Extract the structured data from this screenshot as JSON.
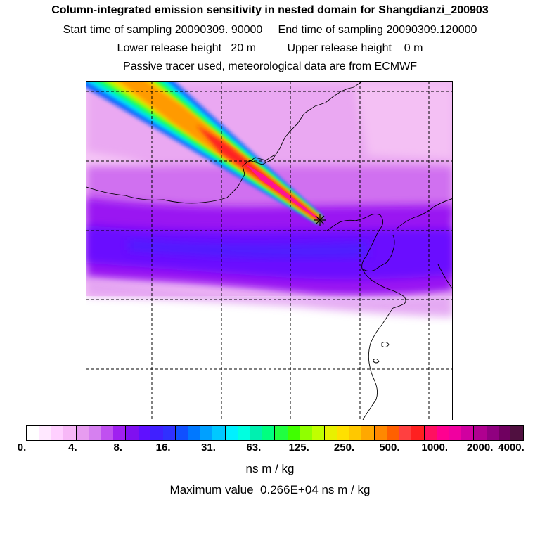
{
  "titles": {
    "line1": "Column-integrated emission sensitivity in nested domain for Shangdianzi_200903",
    "line2": "Start time of sampling 20090309. 90000     End time of sampling 20090309.120000",
    "line3": "Lower release height   20 m          Upper release height    0 m",
    "line4": "Passive tracer used, meteorological data are from ECMWF"
  },
  "map": {
    "release_site_marker": "star-cross-icon",
    "plume_colors": {
      "core": "#ff1493",
      "inner": "#ff2020",
      "mid": "#ff9a00",
      "outer": "#ffd400",
      "edge": "#a0ff00",
      "rim_green": "#00ff80",
      "rim_cyan": "#00e0ff",
      "rim_blue": "#1060ff"
    },
    "background_colors": {
      "light_pink": "#f6c8f6",
      "pink": "#e79cf0",
      "magenta": "#c860f0",
      "purple": "#9010f0",
      "violet": "#6000ff",
      "white": "#ffffff"
    }
  },
  "colorbar": {
    "swatches": [
      "#ffffff",
      "#ffe8ff",
      "#ffd0ff",
      "#f7b8f7",
      "#e79cf0",
      "#d680f0",
      "#c050f0",
      "#a020f0",
      "#8010f0",
      "#6010ff",
      "#4020ff",
      "#3030ff",
      "#1050ff",
      "#0078ff",
      "#00a0ff",
      "#00c8ff",
      "#00f0ff",
      "#00ffe0",
      "#00f0b0",
      "#00ff80",
      "#20ff40",
      "#40ff00",
      "#90ff00",
      "#c0ff00",
      "#e8f000",
      "#ffe000",
      "#ffc800",
      "#ffa800",
      "#ff8800",
      "#ff6000",
      "#ff4040",
      "#ff2020",
      "#ff1060",
      "#ff0090",
      "#f000a0",
      "#d000a0",
      "#b00090",
      "#900080",
      "#700060",
      "#501040"
    ],
    "tick_labels": [
      "0.",
      "4.",
      "8.",
      "16.",
      "31.",
      "63.",
      "125.",
      "250.",
      "500.",
      "1000.",
      "2000.",
      "4000."
    ],
    "units": "ns m / kg"
  },
  "footer": {
    "maximum_value": "Maximum value  0.266E+04 ns m / kg"
  }
}
